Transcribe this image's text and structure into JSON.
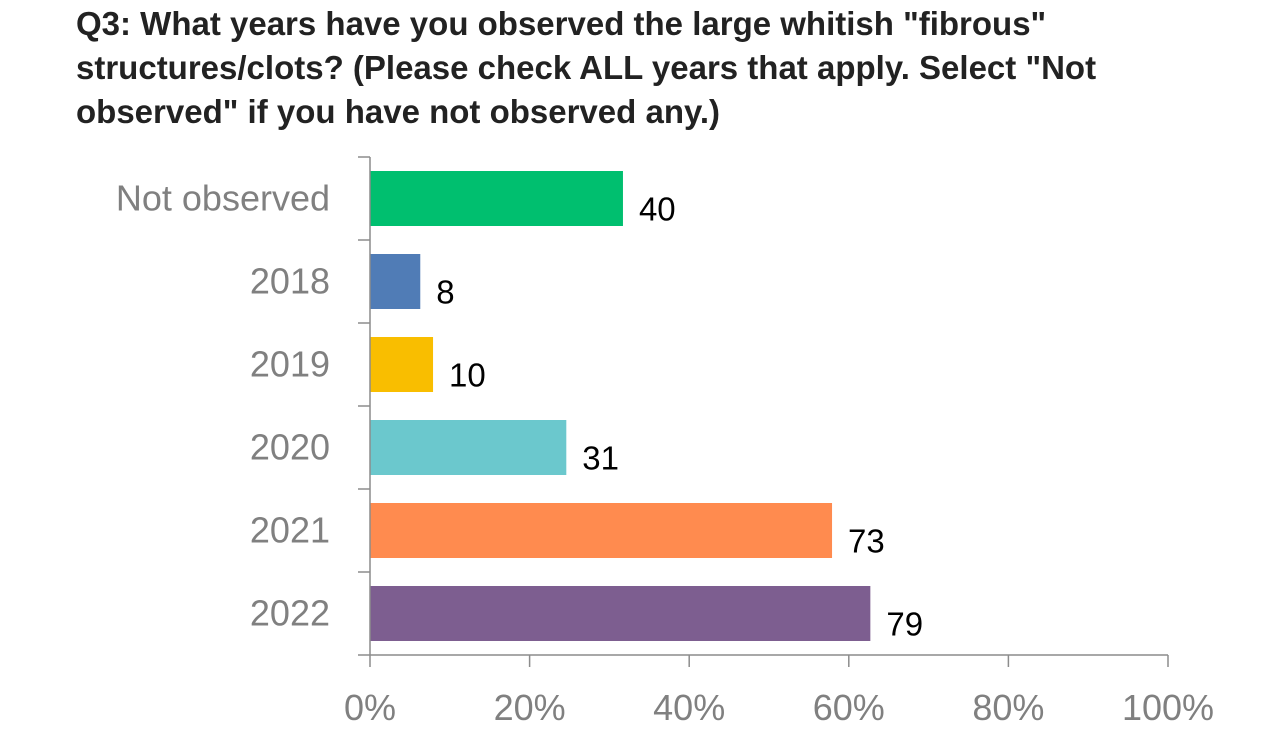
{
  "chart_data": {
    "type": "bar",
    "orientation": "horizontal",
    "title": "Q3: What years have you observed the large whitish \"fibrous\" structures/clots? (Please check ALL years that apply.  Select \"Not observed\" if you have not observed any.)",
    "title_lines": [
      "Q3: What years have you observed the large whitish \"fibrous\"",
      "structures/clots? (Please check ALL years that apply.  Select \"Not",
      "observed\" if you have not observed any.)"
    ],
    "categories": [
      "Not observed",
      "2018",
      "2019",
      "2020",
      "2021",
      "2022"
    ],
    "values": [
      40,
      8,
      10,
      31,
      73,
      79
    ],
    "percent_values": [
      31.7,
      6.3,
      7.9,
      24.6,
      57.9,
      62.7
    ],
    "colors": [
      "#00bf6f",
      "#507cb6",
      "#f9be00",
      "#6bc8cd",
      "#ff8b4f",
      "#7d5e90"
    ],
    "xlabel": "",
    "ylabel": "",
    "xlim": [
      0,
      100
    ],
    "xticks": [
      0,
      20,
      40,
      60,
      80,
      100
    ],
    "xtick_labels": [
      "0%",
      "20%",
      "40%",
      "60%",
      "80%",
      "100%"
    ],
    "grid": false,
    "legend": "none"
  }
}
